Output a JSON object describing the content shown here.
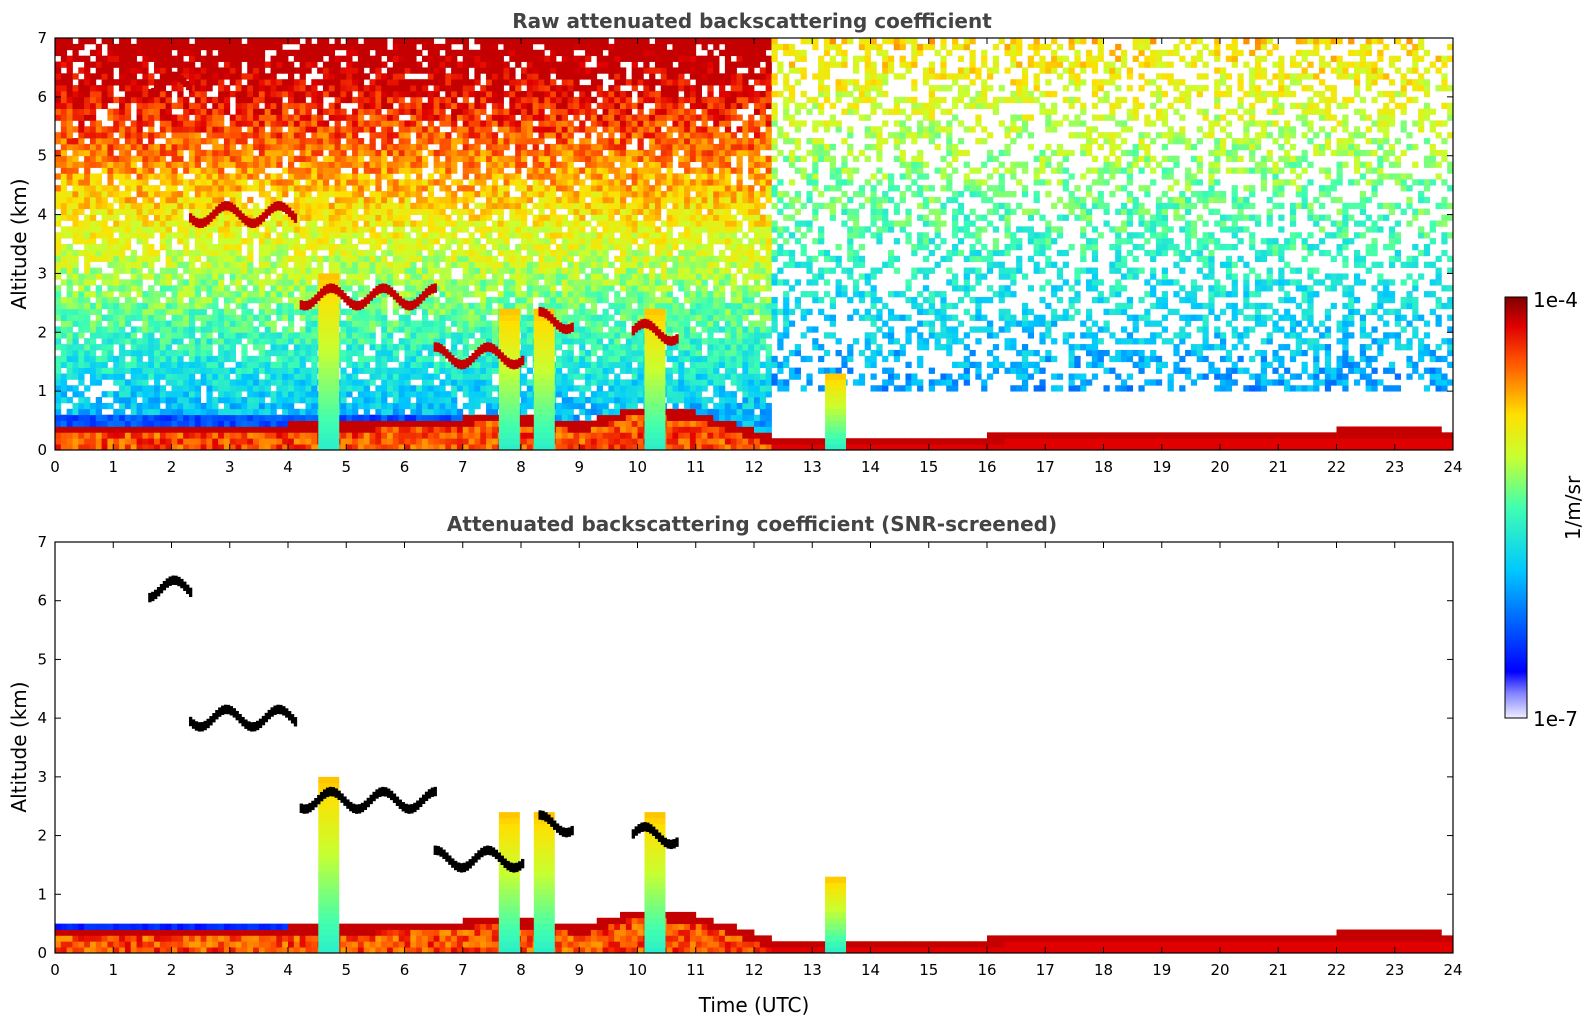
{
  "chart_data": [
    {
      "type": "heatmap",
      "title": "Raw attenuated backscattering coefficient",
      "ylabel": "Altitude (km)",
      "xlabel": "",
      "xlim": [
        0,
        24
      ],
      "ylim": [
        0,
        7
      ],
      "xticks": [
        "0",
        "1",
        "2",
        "3",
        "4",
        "5",
        "6",
        "7",
        "8",
        "9",
        "10",
        "11",
        "12",
        "13",
        "14",
        "15",
        "16",
        "17",
        "18",
        "19",
        "20",
        "21",
        "22",
        "23",
        "24"
      ],
      "yticks": [
        "0",
        "1",
        "2",
        "3",
        "4",
        "5",
        "6",
        "7"
      ],
      "colormap": "jet",
      "colorscale": "log",
      "clim": [
        "1e-7",
        "1e-4"
      ],
      "features": {
        "boundary_layer_top_km": [
          [
            0,
            0.35
          ],
          [
            4,
            0.4
          ],
          [
            7,
            0.5
          ],
          [
            7.5,
            0.6
          ],
          [
            8.8,
            0.45
          ],
          [
            9,
            0.4
          ],
          [
            10,
            0.7
          ],
          [
            11,
            0.6
          ],
          [
            12,
            0.3
          ],
          [
            12.3,
            0.2
          ],
          [
            13,
            0.2
          ],
          [
            16,
            0.2
          ],
          [
            16.5,
            0.3
          ],
          [
            20,
            0.3
          ],
          [
            22,
            0.3
          ],
          [
            22.5,
            0.35
          ],
          [
            23.8,
            0.3
          ]
        ],
        "high_noise_band": "strong noise above 2 km before 12 UTC, sparse after 12 UTC",
        "clouds": [
          {
            "t_start": 2.3,
            "t_end": 4.1,
            "alt_km": 4.0
          },
          {
            "t_start": 4.2,
            "t_end": 6.5,
            "alt_km": 2.6
          },
          {
            "t_start": 6.5,
            "t_end": 8.0,
            "alt_km": 1.6
          },
          {
            "t_start": 8.3,
            "t_end": 8.9,
            "alt_km": 2.2
          },
          {
            "t_start": 9.9,
            "t_end": 10.7,
            "alt_km": 2.0
          },
          {
            "t_start": 1.6,
            "t_end": 2.3,
            "alt_km": 6.2
          }
        ],
        "vertical_precipitation_columns_utc": [
          4.7,
          7.8,
          8.4,
          10.3,
          13.4
        ]
      }
    },
    {
      "type": "heatmap",
      "title": "Attenuated backscattering coefficient (SNR-screened)",
      "ylabel": "Altitude (km)",
      "xlabel": "Time (UTC)",
      "xlim": [
        0,
        24
      ],
      "ylim": [
        0,
        7
      ],
      "xticks": [
        "0",
        "1",
        "2",
        "3",
        "4",
        "5",
        "6",
        "7",
        "8",
        "9",
        "10",
        "11",
        "12",
        "13",
        "14",
        "15",
        "16",
        "17",
        "18",
        "19",
        "20",
        "21",
        "22",
        "23",
        "24"
      ],
      "yticks": [
        "0",
        "1",
        "2",
        "3",
        "4",
        "5",
        "6",
        "7"
      ],
      "colormap": "jet",
      "colorscale": "log",
      "clim": [
        "1e-7",
        "1e-4"
      ]
    }
  ],
  "colorbar": {
    "label": "1/m/sr",
    "max_label": "1e-4",
    "min_label": "1e-7"
  }
}
